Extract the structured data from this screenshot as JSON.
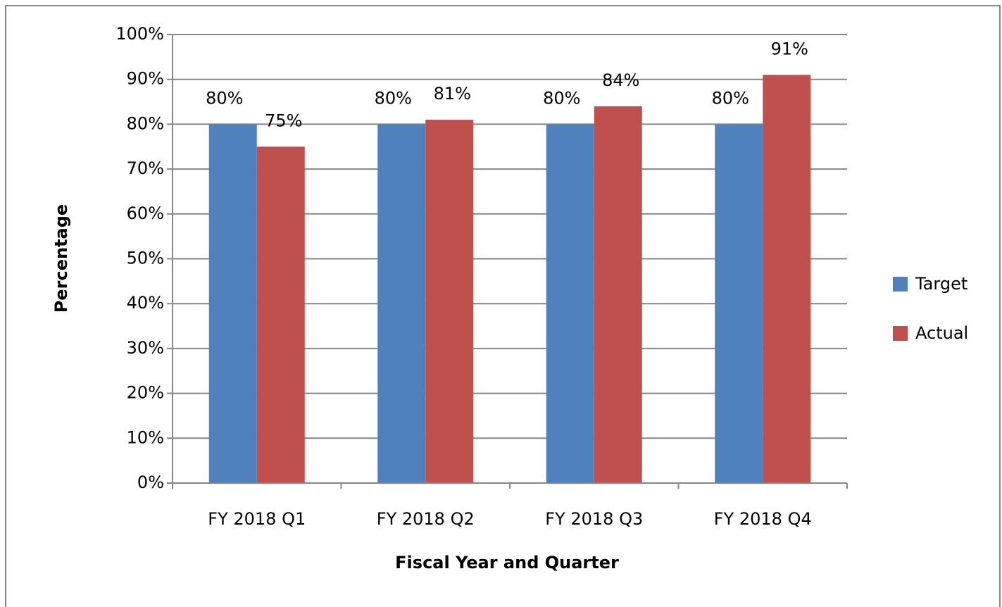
{
  "chart_data": {
    "type": "bar",
    "x_label": "Fiscal Year and Quarter",
    "y_label": "Percentage",
    "categories": [
      "FY 2018 Q1",
      "FY 2018 Q2",
      "FY 2018 Q3",
      "FY 2018 Q4"
    ],
    "series": [
      {
        "name": "Target",
        "color": "#4f81bd",
        "values": [
          80,
          80,
          80,
          80
        ],
        "value_labels": [
          "80%",
          "80%",
          "80%",
          "80%"
        ]
      },
      {
        "name": "Actual",
        "color": "#c0504d",
        "values": [
          75,
          81,
          84,
          91
        ],
        "value_labels": [
          "75%",
          "81%",
          "84%",
          "91%"
        ]
      }
    ],
    "ylim": [
      0,
      100
    ],
    "yticks": [
      {
        "value": 0,
        "label": "0%"
      },
      {
        "value": 10,
        "label": "10%"
      },
      {
        "value": 20,
        "label": "20%"
      },
      {
        "value": 30,
        "label": "30%"
      },
      {
        "value": 40,
        "label": "40%"
      },
      {
        "value": 50,
        "label": "50%"
      },
      {
        "value": 60,
        "label": "60%"
      },
      {
        "value": 70,
        "label": "70%"
      },
      {
        "value": 80,
        "label": "80%"
      },
      {
        "value": 90,
        "label": "90%"
      },
      {
        "value": 100,
        "label": "100%"
      }
    ],
    "grid": true,
    "legend": "right"
  }
}
